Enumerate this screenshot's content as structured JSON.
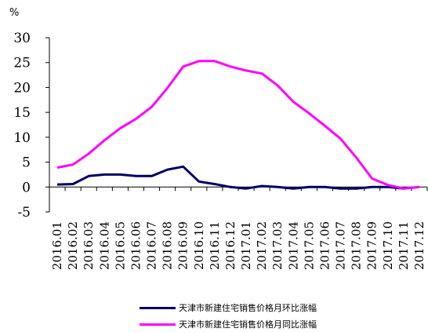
{
  "chart_data": {
    "type": "line",
    "unit_label": "%",
    "categories": [
      "2016.01",
      "2016.02",
      "2016.03",
      "2016.04",
      "2016.05",
      "2016.06",
      "2016.07",
      "2016.08",
      "2016.09",
      "2016.10",
      "2016.11",
      "2016.12",
      "2017.01",
      "2017.02",
      "2017.03",
      "2017.04",
      "2017.05",
      "2017.06",
      "2017.07",
      "2017.08",
      "2017.09",
      "2017.10",
      "2017.11",
      "2017.12"
    ],
    "series": [
      {
        "name": "天津市新建住宅销售价格月环比涨幅",
        "color": "#000066",
        "values": [
          0.5,
          0.6,
          2.2,
          2.5,
          2.5,
          2.2,
          2.2,
          3.5,
          4.1,
          1.1,
          0.6,
          0.0,
          -0.3,
          0.2,
          0.0,
          -0.3,
          0.0,
          0.0,
          -0.3,
          -0.3,
          0.0,
          0.0,
          -0.3,
          0.0
        ]
      },
      {
        "name": "天津市新建住宅销售价格月同比涨幅",
        "color": "#ff00ff",
        "values": [
          3.9,
          4.5,
          6.7,
          9.4,
          11.8,
          13.7,
          16.1,
          19.9,
          24.2,
          25.3,
          25.3,
          24.2,
          23.4,
          22.8,
          20.4,
          17.1,
          14.8,
          12.3,
          9.7,
          5.9,
          1.7,
          0.4,
          -0.3,
          0.0
        ]
      }
    ],
    "yticks": [
      "-5",
      "0",
      "5",
      "10",
      "15",
      "20",
      "25",
      "30"
    ],
    "ylim": [
      -5,
      30
    ],
    "grid": false,
    "legend_position": "bottom"
  }
}
